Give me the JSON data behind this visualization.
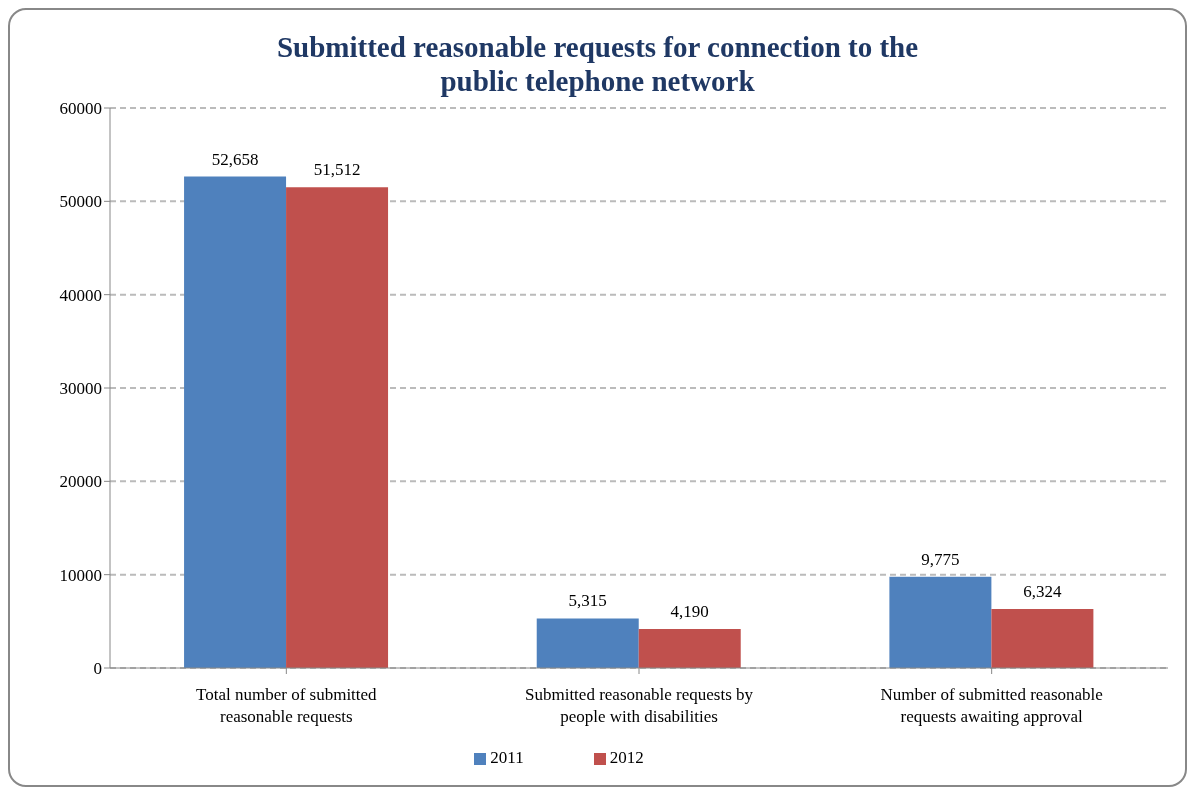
{
  "chart_data": {
    "type": "bar",
    "title": "Submitted reasonable requests for connection to the public telephone network",
    "categories": [
      "Total number of submitted reasonable requests",
      "Submitted reasonable requests by people with disabilities",
      "Number of submitted reasonable requests awaiting approval"
    ],
    "series": [
      {
        "name": "2011",
        "color": "#4f81bd",
        "values": [
          52658,
          5315,
          9775
        ],
        "value_labels": [
          "52,658",
          "5,315",
          "9,775"
        ]
      },
      {
        "name": "2012",
        "color": "#c0504d",
        "values": [
          51512,
          4190,
          6324
        ],
        "value_labels": [
          "51,512",
          "4,190",
          "6,324"
        ]
      }
    ],
    "ylim": [
      0,
      60000
    ],
    "yticks": [
      0,
      10000,
      20000,
      30000,
      40000,
      50000,
      60000
    ],
    "grid": "y",
    "legend": "bottom"
  }
}
